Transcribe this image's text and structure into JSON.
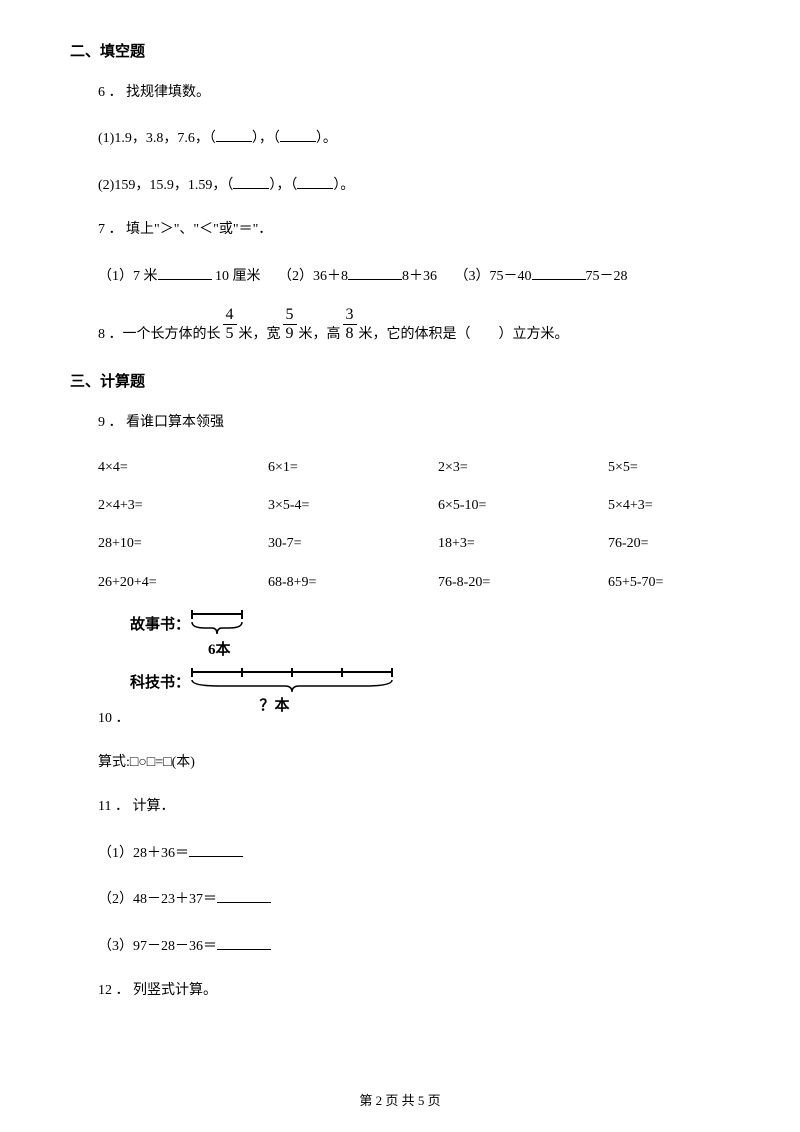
{
  "section2": {
    "header": "二、填空题",
    "q6": {
      "num": "6 ．",
      "text": "找规律填数。",
      "sub1_prefix": "(1)1.9，3.8，7.6，（",
      "sub1_mid": "），（",
      "sub1_suffix": "）。",
      "sub2_prefix": "(2)159，15.9，1.59，（",
      "sub2_mid": "），（",
      "sub2_suffix": "）。"
    },
    "q7": {
      "num": "7 ．",
      "text": "填上\"＞\"、\"＜\"或\"＝\"．",
      "sub1_a": "（1）7 米",
      "sub1_b": " 10 厘米",
      "sub2_a": "（2）36＋8",
      "sub2_b": "8＋36",
      "sub3_a": "（3）75－40",
      "sub3_b": "75－28"
    },
    "q8": {
      "num": "8 ．",
      "t1": "一个长方体的长",
      "f1n": "4",
      "f1d": "5",
      "t2": " 米，宽",
      "f2n": "5",
      "f2d": "9",
      "t3": " 米，高",
      "f3n": "3",
      "f3d": "8",
      "t4": " 米，它的体积是（　　）立方米。"
    }
  },
  "section3": {
    "header": "三、计算题",
    "q9": {
      "num": "9 ．",
      "text": "看谁口算本领强",
      "rows": [
        [
          "4×4=",
          "6×1=",
          "2×3=",
          "5×5="
        ],
        [
          "2×4+3=",
          "3×5-4=",
          "6×5-10=",
          "5×4+3="
        ],
        [
          "28+10=",
          "30-7=",
          "18+3=",
          "76-20="
        ],
        [
          "26+20+4=",
          "68-8+9=",
          "76-8-20=",
          "65+5-70="
        ]
      ]
    },
    "q10": {
      "label1": "故事书：",
      "count1": "6本",
      "label2": "科技书：",
      "count2": "？本",
      "num": "10 ．",
      "expr": "算式:□○□=□(本)"
    },
    "q11": {
      "num": "11 ．",
      "text": "计算．",
      "sub1": "（1）28＋36＝",
      "sub2": "（2）48－23＋37＝",
      "sub3": "（3）97－28－36＝"
    },
    "q12": {
      "num": "12 ．",
      "text": "列竖式计算。"
    }
  },
  "footer": "第 2 页 共 5 页",
  "style": {
    "brace_color": "#000000"
  }
}
